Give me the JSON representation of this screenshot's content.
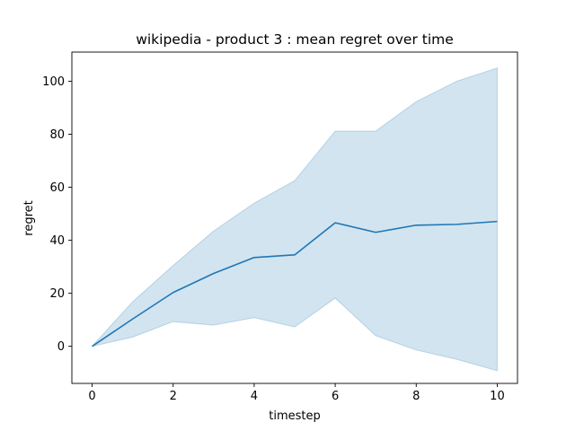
{
  "chart_data": {
    "type": "line",
    "title": "wikipedia - product 3 : mean regret over time",
    "xlabel": "timestep",
    "ylabel": "regret",
    "xlim": [
      -0.5,
      10.5
    ],
    "ylim": [
      -14,
      111
    ],
    "xticks": [
      0,
      2,
      4,
      6,
      8,
      10
    ],
    "yticks": [
      0,
      20,
      40,
      60,
      80,
      100
    ],
    "grid": false,
    "colors": {
      "line": "#1f77b4",
      "band": "#1f77b4",
      "axes": "#000000"
    },
    "x": [
      0,
      1,
      2,
      3,
      4,
      5,
      6,
      7,
      8,
      9,
      10
    ],
    "series": [
      {
        "values": [
          0,
          10.3,
          20.3,
          27.5,
          33.5,
          34.5,
          46.6,
          43.0,
          45.7,
          46.0,
          47.1
        ]
      }
    ],
    "band": {
      "upper": [
        0,
        16.8,
        30.5,
        43.5,
        54.0,
        62.5,
        81.2,
        81.2,
        92.3,
        100.0,
        105.0
      ],
      "lower": [
        0,
        3.5,
        9.3,
        8.0,
        10.8,
        7.3,
        18.2,
        4.0,
        -1.4,
        -4.9,
        -9.2
      ]
    }
  }
}
